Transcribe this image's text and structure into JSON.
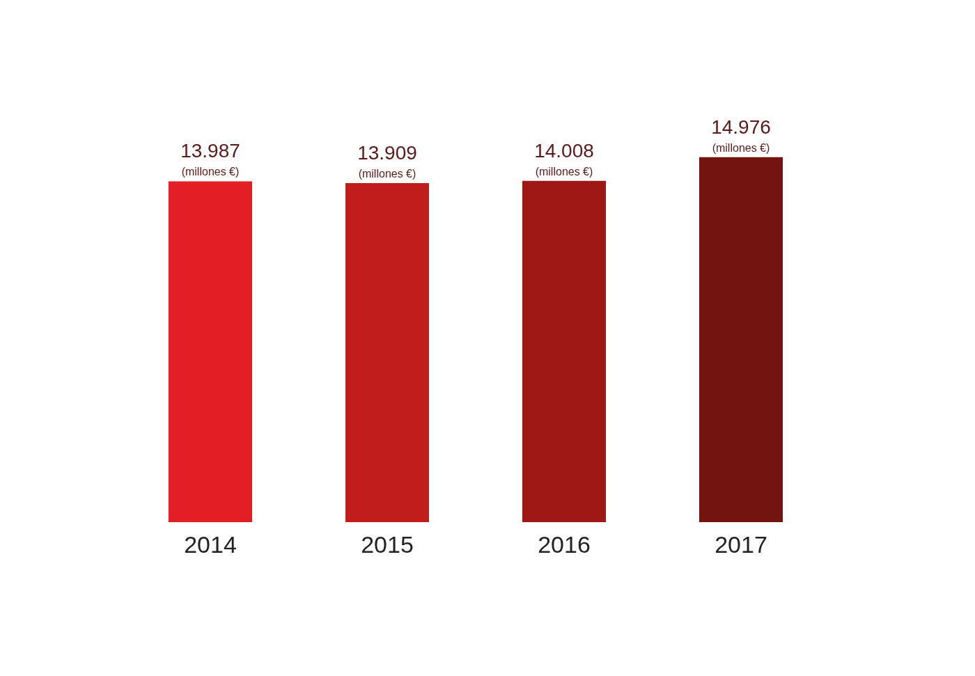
{
  "chart_data": {
    "type": "bar",
    "categories": [
      "2014",
      "2015",
      "2016",
      "2017"
    ],
    "values": [
      13987,
      13909,
      14008,
      14976
    ],
    "colors": [
      "#e31e24",
      "#c01d1c",
      "#9e1916",
      "#731410"
    ],
    "value_labels": [
      "13.987\n(millones €)",
      "13.909\n(millones €)",
      "14.008\n(millones €)",
      "14.976\n(millones €)"
    ],
    "grid": false,
    "legend": false
  }
}
